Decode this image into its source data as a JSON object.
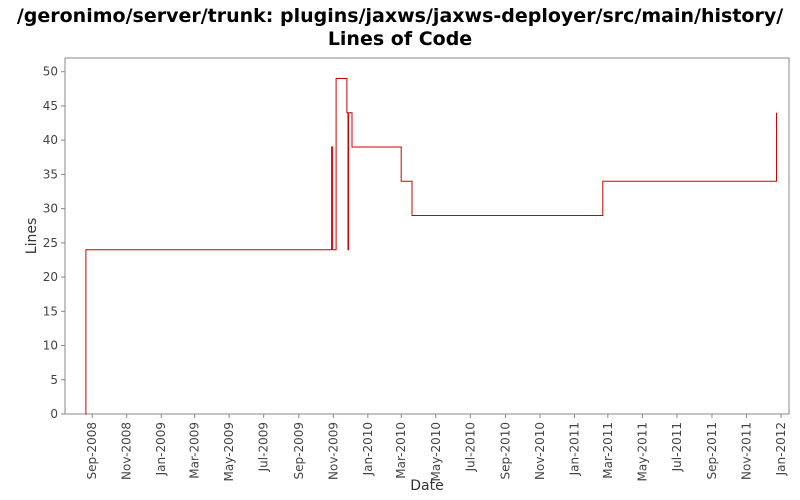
{
  "header": {
    "title_line1": "/geronimo/server/trunk: plugins/jaxws/jaxws-deployer/src/main/history/",
    "title_line2": "Lines of Code"
  },
  "colors": {
    "series": "#cc0000",
    "axis": "#888888",
    "frame": "#888888",
    "text": "#444444"
  },
  "chart_data": {
    "type": "line",
    "step": true,
    "title": "Lines of Code",
    "xlabel": "Date",
    "ylabel": "Lines",
    "xlim": [
      "2008-07-15",
      "2012-01-15"
    ],
    "ylim": [
      0,
      52
    ],
    "yticks": [
      0,
      5,
      10,
      15,
      20,
      25,
      30,
      35,
      40,
      45,
      50
    ],
    "xticks": [
      {
        "date": "2008-09-01",
        "label": "Sep-2008"
      },
      {
        "date": "2008-11-01",
        "label": "Nov-2008"
      },
      {
        "date": "2009-01-01",
        "label": "Jan-2009"
      },
      {
        "date": "2009-03-01",
        "label": "Mar-2009"
      },
      {
        "date": "2009-05-01",
        "label": "May-2009"
      },
      {
        "date": "2009-07-01",
        "label": "Jul-2009"
      },
      {
        "date": "2009-09-01",
        "label": "Sep-2009"
      },
      {
        "date": "2009-11-01",
        "label": "Nov-2009"
      },
      {
        "date": "2010-01-01",
        "label": "Jan-2010"
      },
      {
        "date": "2010-03-01",
        "label": "Mar-2010"
      },
      {
        "date": "2010-05-01",
        "label": "May-2010"
      },
      {
        "date": "2010-07-01",
        "label": "Jul-2010"
      },
      {
        "date": "2010-09-01",
        "label": "Sep-2010"
      },
      {
        "date": "2010-11-01",
        "label": "Nov-2010"
      },
      {
        "date": "2011-01-01",
        "label": "Jan-2011"
      },
      {
        "date": "2011-03-01",
        "label": "Mar-2011"
      },
      {
        "date": "2011-05-01",
        "label": "May-2011"
      },
      {
        "date": "2011-07-01",
        "label": "Jul-2011"
      },
      {
        "date": "2011-09-01",
        "label": "Sep-2011"
      },
      {
        "date": "2011-11-01",
        "label": "Nov-2011"
      },
      {
        "date": "2012-01-01",
        "label": "Jan-2012"
      }
    ],
    "grid": false,
    "legend": "none",
    "series": [
      {
        "points": [
          {
            "x": "2008-08-20",
            "y": 0
          },
          {
            "x": "2008-08-21",
            "y": 24
          },
          {
            "x": "2009-10-29",
            "y": 39
          },
          {
            "x": "2009-10-31",
            "y": 24
          },
          {
            "x": "2009-11-05",
            "y": 24
          },
          {
            "x": "2009-11-06",
            "y": 49
          },
          {
            "x": "2009-11-25",
            "y": 44
          },
          {
            "x": "2009-11-27",
            "y": 24
          },
          {
            "x": "2009-11-28",
            "y": 44
          },
          {
            "x": "2009-12-04",
            "y": 39
          },
          {
            "x": "2010-03-01",
            "y": 34
          },
          {
            "x": "2010-03-20",
            "y": 29
          },
          {
            "x": "2011-02-20",
            "y": 34
          },
          {
            "x": "2011-12-24",
            "y": 44
          }
        ]
      }
    ]
  }
}
